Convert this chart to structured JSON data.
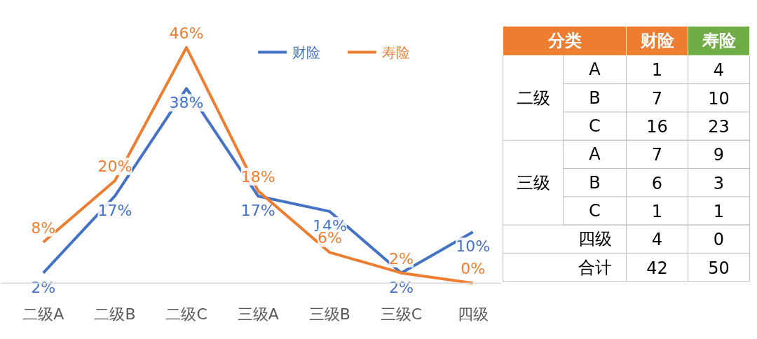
{
  "chart_data": [
    {
      "type": "line",
      "categories": [
        "二级A",
        "二级B",
        "二级C",
        "三级A",
        "三级B",
        "三级C",
        "四级"
      ],
      "series": [
        {
          "name": "财险",
          "color": "#4472c4",
          "values": [
            2,
            17,
            38,
            17,
            14,
            2,
            10
          ],
          "value_labels": [
            "2%",
            "17%",
            "38%",
            "17%",
            "14%",
            "2%",
            "10%"
          ]
        },
        {
          "name": "寿险",
          "color": "#ed7d31",
          "values": [
            8,
            20,
            46,
            18,
            6,
            2,
            0
          ],
          "value_labels": [
            "8%",
            "20%",
            "46%",
            "18%",
            "6%",
            "2%",
            "0%"
          ]
        }
      ],
      "legend": "top",
      "line_style": "solid"
    },
    {
      "type": "heatmap",
      "title": "分类",
      "categories": [
        "财险",
        "寿险"
      ],
      "colors": [
        "#ed7d31",
        "#70ad47"
      ],
      "y_categories": [
        "A",
        "B",
        "C",
        "A",
        "B",
        "C",
        "四级",
        "合计"
      ],
      "annotations": [
        "二级",
        "三级"
      ],
      "data_labels": true,
      "cells": [
        [
          1,
          4
        ],
        [
          7,
          10
        ],
        [
          16,
          23
        ],
        [
          7,
          9
        ],
        [
          6,
          3
        ],
        [
          1,
          1
        ],
        [
          4,
          0
        ],
        [
          42,
          50
        ]
      ]
    }
  ]
}
